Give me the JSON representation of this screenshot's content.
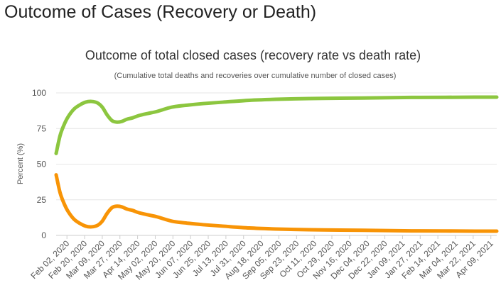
{
  "page": {
    "heading": "Outcome of Cases (Recovery or Death)"
  },
  "chart_data": {
    "type": "line",
    "title": "Outcome of total closed cases (recovery rate vs death rate)",
    "subtitle": "(Cumulative total deaths and recoveries over cumulative number of closed cases)",
    "xlabel": "",
    "ylabel": "Percent (%)",
    "ylim": [
      0,
      100
    ],
    "yticks": [
      0,
      25,
      50,
      75,
      100
    ],
    "grid": true,
    "legend": "none",
    "x_start": "2020-01-22",
    "x_end": "2021-04-15",
    "x_ticks": [
      "Feb 02, 2020",
      "Feb 20, 2020",
      "Mar 09, 2020",
      "Mar 27, 2020",
      "Apr 14, 2020",
      "May 02, 2020",
      "May 20, 2020",
      "Jun 07, 2020",
      "Jun 25, 2020",
      "Jul 13, 2020",
      "Jul 31, 2020",
      "Aug 18, 2020",
      "Sep 05, 2020",
      "Sep 23, 2020",
      "Oct 11, 2020",
      "Oct 29, 2020",
      "Nov 16, 2020",
      "Dec 04, 2020",
      "Dec 22, 2020",
      "Jan 09, 2021",
      "Jan 27, 2021",
      "Feb 14, 2021",
      "Mar 04, 2021",
      "Mar 22, 2021",
      "Apr 09, 2021"
    ],
    "x": [
      "2020-01-22",
      "2020-01-26",
      "2020-01-30",
      "2020-02-03",
      "2020-02-09",
      "2020-02-15",
      "2020-02-21",
      "2020-02-27",
      "2020-03-04",
      "2020-03-09",
      "2020-03-14",
      "2020-03-19",
      "2020-03-24",
      "2020-03-29",
      "2020-04-03",
      "2020-04-09",
      "2020-04-15",
      "2020-04-24",
      "2020-05-04",
      "2020-05-19",
      "2020-06-05",
      "2020-06-20",
      "2020-07-10",
      "2020-08-06",
      "2020-09-02",
      "2020-10-06",
      "2020-11-06",
      "2020-12-13",
      "2021-01-18",
      "2021-02-22",
      "2021-03-24",
      "2021-04-15"
    ],
    "series": [
      {
        "color": "#8cc63f",
        "values": [
          57.5,
          70,
          77.5,
          83,
          88.5,
          91.5,
          93.5,
          94,
          93,
          90,
          84.5,
          80.5,
          79.5,
          80,
          81.5,
          82.5,
          84,
          85.5,
          87,
          90,
          91.5,
          92.5,
          93.5,
          94.8,
          95.5,
          96,
          96.3,
          96.5,
          96.8,
          96.9,
          97,
          97
        ]
      },
      {
        "color": "#f89406",
        "values": [
          42.5,
          30,
          22.5,
          17,
          11.5,
          8.5,
          6.5,
          6,
          7,
          10,
          15.5,
          19.5,
          20.5,
          20,
          18.5,
          17.5,
          16,
          14.5,
          13,
          10,
          8.5,
          7.5,
          6.5,
          5.2,
          4.5,
          4,
          3.7,
          3.5,
          3.2,
          3.1,
          3,
          3
        ]
      }
    ]
  }
}
